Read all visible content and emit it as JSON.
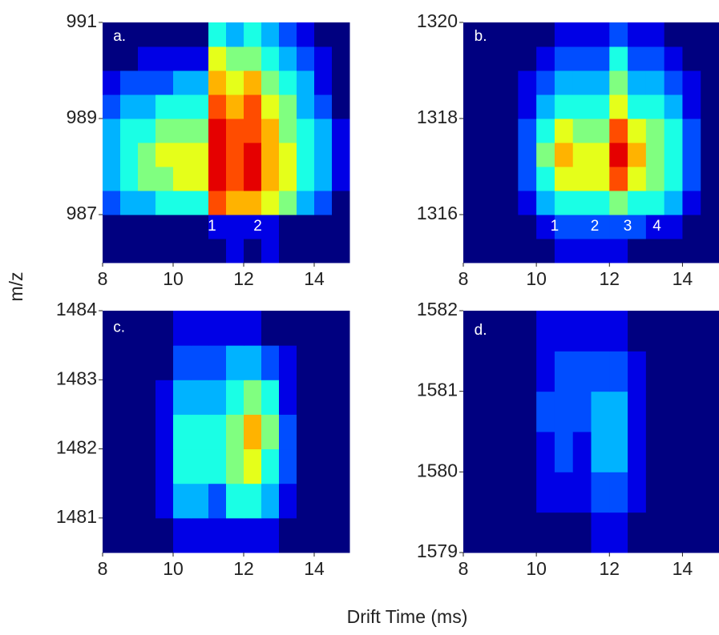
{
  "xlabel": "Drift Time (ms)",
  "ylabel": "m/z",
  "chart_data": [
    {
      "type": "heatmap",
      "colormap": "jet",
      "zlim": [
        0,
        10
      ],
      "xlim": [
        8,
        15
      ],
      "ylim": [
        986,
        991
      ],
      "xticks": [
        8,
        10,
        12,
        14
      ],
      "yticks": [
        987,
        989,
        991
      ],
      "xbins": [
        8,
        8.5,
        9,
        9.5,
        10,
        10.5,
        11,
        11.5,
        12,
        12.5,
        13,
        13.5,
        14,
        14.5,
        15
      ],
      "ybins": [
        986,
        986.5,
        987,
        987.5,
        988,
        988.5,
        989,
        989.5,
        990,
        990.5,
        991
      ],
      "z": [
        [
          0,
          0,
          0,
          0,
          0,
          0,
          0,
          1,
          0,
          1,
          0,
          0,
          0,
          0
        ],
        [
          0,
          0,
          0,
          0,
          0,
          0,
          1,
          1,
          1,
          1,
          0,
          0,
          0,
          0
        ],
        [
          2,
          3,
          3,
          4,
          4,
          4,
          8,
          7,
          7,
          6,
          5,
          3,
          2,
          0
        ],
        [
          3,
          4,
          5,
          5,
          6,
          6,
          9,
          8,
          9,
          7,
          6,
          4,
          3,
          1
        ],
        [
          3,
          4,
          5,
          6,
          6,
          6,
          9,
          8,
          9,
          7,
          6,
          4,
          3,
          1
        ],
        [
          3,
          4,
          4,
          5,
          5,
          5,
          9,
          8,
          8,
          7,
          5,
          4,
          3,
          1
        ],
        [
          2,
          3,
          3,
          4,
          4,
          4,
          8,
          7,
          8,
          6,
          5,
          3,
          2,
          0
        ],
        [
          1,
          2,
          2,
          2,
          3,
          3,
          7,
          6,
          7,
          5,
          4,
          3,
          1,
          0
        ],
        [
          0,
          0,
          1,
          1,
          1,
          1,
          6,
          5,
          5,
          4,
          3,
          2,
          1,
          0
        ],
        [
          0,
          0,
          0,
          0,
          0,
          0,
          4,
          3,
          4,
          3,
          2,
          1,
          0,
          0
        ]
      ],
      "annotations": [
        {
          "text": "a.",
          "x": 8.3,
          "y": 990.7
        },
        {
          "text": "1",
          "x": 11.1,
          "y": 986.75
        },
        {
          "text": "2",
          "x": 12.4,
          "y": 986.75
        }
      ]
    },
    {
      "type": "heatmap",
      "colormap": "jet",
      "zlim": [
        0,
        10
      ],
      "xlim": [
        8,
        15
      ],
      "ylim": [
        1315,
        1320
      ],
      "xticks": [
        8,
        10,
        12,
        14
      ],
      "yticks": [
        1316,
        1318,
        1320
      ],
      "xbins": [
        8,
        8.5,
        9,
        9.5,
        10,
        10.5,
        11,
        11.5,
        12,
        12.5,
        13,
        13.5,
        14,
        14.5,
        15
      ],
      "ybins": [
        1315,
        1315.5,
        1316,
        1316.5,
        1317,
        1317.5,
        1318,
        1318.5,
        1319,
        1319.5,
        1320
      ],
      "z": [
        [
          0,
          0,
          0,
          0,
          0,
          1,
          1,
          1,
          1,
          0,
          0,
          0,
          0,
          0
        ],
        [
          0,
          0,
          0,
          0,
          1,
          2,
          2,
          2,
          2,
          2,
          1,
          1,
          0,
          0
        ],
        [
          0,
          0,
          0,
          1,
          3,
          4,
          4,
          4,
          5,
          4,
          4,
          3,
          1,
          0
        ],
        [
          0,
          0,
          0,
          2,
          4,
          6,
          6,
          6,
          8,
          6,
          5,
          4,
          2,
          0
        ],
        [
          0,
          0,
          0,
          2,
          5,
          7,
          6,
          6,
          9,
          7,
          5,
          4,
          2,
          0
        ],
        [
          0,
          0,
          0,
          2,
          4,
          6,
          5,
          5,
          8,
          6,
          5,
          4,
          2,
          0
        ],
        [
          0,
          0,
          0,
          1,
          3,
          4,
          4,
          4,
          6,
          4,
          4,
          3,
          1,
          0
        ],
        [
          0,
          0,
          0,
          1,
          2,
          3,
          3,
          3,
          5,
          3,
          3,
          2,
          1,
          0
        ],
        [
          0,
          0,
          0,
          0,
          1,
          2,
          2,
          2,
          4,
          2,
          2,
          1,
          0,
          0
        ],
        [
          0,
          0,
          0,
          0,
          0,
          1,
          1,
          1,
          2,
          1,
          1,
          0,
          0,
          0
        ]
      ],
      "annotations": [
        {
          "text": "b.",
          "x": 8.3,
          "y": 1319.7
        },
        {
          "text": "1",
          "x": 10.5,
          "y": 1315.75
        },
        {
          "text": "2",
          "x": 11.6,
          "y": 1315.75
        },
        {
          "text": "3",
          "x": 12.5,
          "y": 1315.75
        },
        {
          "text": "4",
          "x": 13.3,
          "y": 1315.75
        }
      ]
    },
    {
      "type": "heatmap",
      "colormap": "jet",
      "zlim": [
        0,
        10
      ],
      "xlim": [
        8,
        15
      ],
      "ylim": [
        1480.5,
        1484
      ],
      "xticks": [
        8,
        10,
        12,
        14
      ],
      "yticks": [
        1481,
        1482,
        1483,
        1484
      ],
      "xbins": [
        8,
        8.5,
        9,
        9.5,
        10,
        10.5,
        11,
        11.5,
        12,
        12.5,
        13,
        13.5,
        14,
        14.5,
        15
      ],
      "ybins": [
        1480.5,
        1481,
        1481.5,
        1482,
        1482.5,
        1483,
        1483.5,
        1484
      ],
      "z": [
        [
          0,
          0,
          0,
          0,
          1,
          1,
          1,
          1,
          1,
          1,
          0,
          0,
          0,
          0
        ],
        [
          0,
          0,
          0,
          1,
          3,
          3,
          2,
          4,
          4,
          3,
          1,
          0,
          0,
          0
        ],
        [
          0,
          0,
          0,
          1,
          4,
          4,
          4,
          5,
          6,
          4,
          2,
          0,
          0,
          0
        ],
        [
          0,
          0,
          0,
          1,
          4,
          4,
          4,
          5,
          7,
          5,
          2,
          0,
          0,
          0
        ],
        [
          0,
          0,
          0,
          1,
          3,
          3,
          3,
          4,
          5,
          4,
          1,
          0,
          0,
          0
        ],
        [
          0,
          0,
          0,
          0,
          2,
          2,
          2,
          3,
          3,
          2,
          1,
          0,
          0,
          0
        ],
        [
          0,
          0,
          0,
          0,
          1,
          1,
          1,
          1,
          1,
          0,
          0,
          0,
          0,
          0
        ]
      ],
      "annotations": [
        {
          "text": "c.",
          "x": 8.3,
          "y": 1483.75
        }
      ]
    },
    {
      "type": "heatmap",
      "colormap": "jet",
      "zlim": [
        0,
        10
      ],
      "xlim": [
        8,
        15
      ],
      "ylim": [
        1579,
        1582
      ],
      "xticks": [
        8,
        10,
        12,
        14
      ],
      "yticks": [
        1579,
        1580,
        1581,
        1582
      ],
      "xbins": [
        8,
        8.5,
        9,
        9.5,
        10,
        10.5,
        11,
        11.5,
        12,
        12.5,
        13,
        13.5,
        14,
        14.5,
        15
      ],
      "ybins": [
        1579,
        1579.5,
        1580,
        1580.5,
        1581,
        1581.5,
        1582
      ],
      "z": [
        [
          0,
          0,
          0,
          0,
          0,
          0,
          0,
          1,
          1,
          0,
          0,
          0,
          0,
          0
        ],
        [
          0,
          0,
          0,
          0,
          1,
          1,
          1,
          2,
          2,
          1,
          0,
          0,
          0,
          0
        ],
        [
          0,
          0,
          0,
          0,
          1,
          2,
          1,
          3,
          3,
          1,
          0,
          0,
          0,
          0
        ],
        [
          0,
          0,
          0,
          0,
          2,
          2,
          2,
          3,
          3,
          1,
          0,
          0,
          0,
          0
        ],
        [
          0,
          0,
          0,
          0,
          1,
          2,
          2,
          2,
          2,
          1,
          0,
          0,
          0,
          0
        ],
        [
          0,
          0,
          0,
          0,
          1,
          1,
          1,
          1,
          1,
          0,
          0,
          0,
          0,
          0
        ]
      ],
      "annotations": [
        {
          "text": "d.",
          "x": 8.3,
          "y": 1581.75
        }
      ]
    }
  ]
}
